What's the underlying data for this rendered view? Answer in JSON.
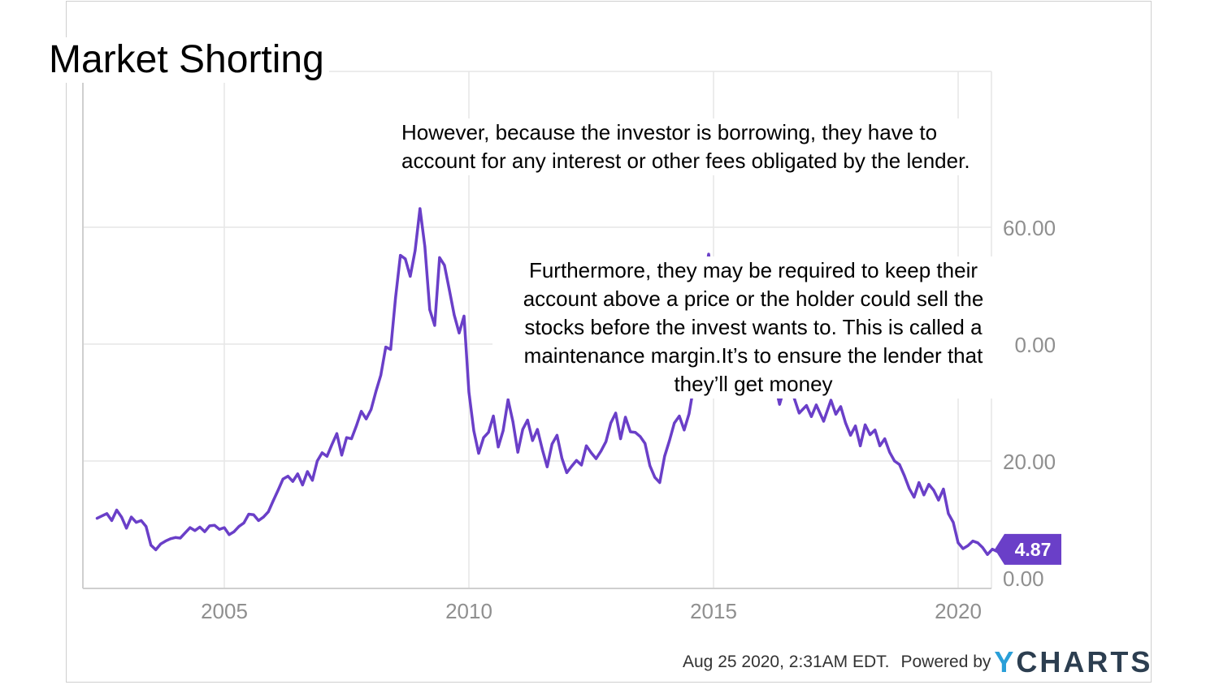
{
  "title": "Market Shorting",
  "callouts": {
    "first": "However, because the investor is borrowing, they have to account for any interest or other fees obligated by the lender.",
    "second_lines": [
      "Furthermore, they may be required to keep their",
      "account above a price or the holder could sell the",
      "stocks before the invest wants to. This is called a",
      "maintenance margin.It’s to ensure the lender that",
      "they’ll get money"
    ]
  },
  "footer": {
    "timestamp": "Aug 25 2020, 2:31AM EDT.",
    "powered_by": "Powered by",
    "brand_y": "Y",
    "brand_rest": "CHARTS"
  },
  "colors": {
    "line": "#6a3fc8",
    "badge": "#6a3fc8",
    "grid": "#e6e6e6",
    "axis": "#cfcfcf",
    "tick_text": "#8f8f8f"
  },
  "chart_data": {
    "type": "line",
    "title": "",
    "xlabel": "",
    "ylabel": "",
    "xlim": [
      2002.4,
      2020.9
    ],
    "ylim": [
      0,
      80
    ],
    "yticks": [
      "0.00",
      "20.00",
      "40.00",
      "60.00"
    ],
    "xticks": [
      "2005",
      "2010",
      "2015",
      "2020"
    ],
    "grid": true,
    "last_value_label": "4.87",
    "series": [
      {
        "name": "",
        "points": [
          [
            2002.4,
            10.2
          ],
          [
            2002.6,
            11.0
          ],
          [
            2002.7,
            9.8
          ],
          [
            2002.8,
            11.6
          ],
          [
            2002.9,
            10.4
          ],
          [
            2003.0,
            8.5
          ],
          [
            2003.1,
            10.4
          ],
          [
            2003.2,
            9.5
          ],
          [
            2003.3,
            9.8
          ],
          [
            2003.4,
            8.8
          ],
          [
            2003.5,
            5.6
          ],
          [
            2003.6,
            4.8
          ],
          [
            2003.7,
            5.8
          ],
          [
            2003.8,
            6.3
          ],
          [
            2003.9,
            6.7
          ],
          [
            2004.0,
            6.9
          ],
          [
            2004.1,
            6.8
          ],
          [
            2004.2,
            7.7
          ],
          [
            2004.3,
            8.6
          ],
          [
            2004.4,
            8.1
          ],
          [
            2004.5,
            8.7
          ],
          [
            2004.6,
            7.9
          ],
          [
            2004.7,
            8.9
          ],
          [
            2004.8,
            9.0
          ],
          [
            2004.9,
            8.3
          ],
          [
            2005.0,
            8.6
          ],
          [
            2005.1,
            7.4
          ],
          [
            2005.2,
            7.9
          ],
          [
            2005.3,
            8.8
          ],
          [
            2005.4,
            9.4
          ],
          [
            2005.5,
            10.9
          ],
          [
            2005.6,
            10.8
          ],
          [
            2005.7,
            9.8
          ],
          [
            2005.8,
            10.4
          ],
          [
            2005.9,
            11.3
          ],
          [
            2006.0,
            13.2
          ],
          [
            2006.1,
            15.0
          ],
          [
            2006.2,
            16.9
          ],
          [
            2006.3,
            17.4
          ],
          [
            2006.4,
            16.5
          ],
          [
            2006.5,
            17.8
          ],
          [
            2006.6,
            15.9
          ],
          [
            2006.7,
            18.2
          ],
          [
            2006.8,
            16.7
          ],
          [
            2006.9,
            20.0
          ],
          [
            2007.0,
            21.4
          ],
          [
            2007.1,
            20.8
          ],
          [
            2007.2,
            22.8
          ],
          [
            2007.3,
            24.7
          ],
          [
            2007.4,
            21.0
          ],
          [
            2007.5,
            24.0
          ],
          [
            2007.6,
            23.8
          ],
          [
            2007.7,
            26.0
          ],
          [
            2007.8,
            28.5
          ],
          [
            2007.9,
            27.2
          ],
          [
            2008.0,
            28.8
          ],
          [
            2008.1,
            31.9
          ],
          [
            2008.2,
            34.7
          ],
          [
            2008.3,
            39.5
          ],
          [
            2008.4,
            39.1
          ],
          [
            2008.5,
            47.9
          ],
          [
            2008.6,
            55.2
          ],
          [
            2008.7,
            54.6
          ],
          [
            2008.8,
            51.6
          ],
          [
            2008.9,
            56.0
          ],
          [
            2009.0,
            63.2
          ],
          [
            2009.1,
            56.7
          ],
          [
            2009.2,
            45.9
          ],
          [
            2009.3,
            43.2
          ],
          [
            2009.4,
            54.8
          ],
          [
            2009.5,
            53.5
          ],
          [
            2009.6,
            49.3
          ],
          [
            2009.7,
            45.0
          ],
          [
            2009.8,
            41.9
          ],
          [
            2009.9,
            44.8
          ],
          [
            2010.0,
            31.8
          ],
          [
            2010.1,
            25.2
          ],
          [
            2010.2,
            21.3
          ],
          [
            2010.3,
            24.0
          ],
          [
            2010.4,
            24.9
          ],
          [
            2010.5,
            27.7
          ],
          [
            2010.6,
            22.4
          ],
          [
            2010.7,
            25.2
          ],
          [
            2010.8,
            30.5
          ],
          [
            2010.9,
            26.7
          ],
          [
            2011.0,
            21.5
          ],
          [
            2011.1,
            25.4
          ],
          [
            2011.2,
            27.0
          ],
          [
            2011.3,
            23.5
          ],
          [
            2011.4,
            25.4
          ],
          [
            2011.5,
            22.0
          ],
          [
            2011.6,
            19.0
          ],
          [
            2011.7,
            22.9
          ],
          [
            2011.8,
            24.4
          ],
          [
            2011.9,
            20.5
          ],
          [
            2012.0,
            18.0
          ],
          [
            2012.1,
            19.1
          ],
          [
            2012.2,
            20.1
          ],
          [
            2012.3,
            19.3
          ],
          [
            2012.4,
            22.6
          ],
          [
            2012.5,
            21.4
          ],
          [
            2012.6,
            20.4
          ],
          [
            2012.7,
            21.7
          ],
          [
            2012.8,
            23.3
          ],
          [
            2012.9,
            26.5
          ],
          [
            2013.0,
            28.2
          ],
          [
            2013.1,
            23.8
          ],
          [
            2013.2,
            27.5
          ],
          [
            2013.3,
            25.0
          ],
          [
            2013.4,
            24.9
          ],
          [
            2013.5,
            24.2
          ],
          [
            2013.6,
            23.0
          ],
          [
            2013.7,
            19.2
          ],
          [
            2013.8,
            17.2
          ],
          [
            2013.9,
            16.3
          ],
          [
            2014.0,
            20.8
          ],
          [
            2014.1,
            23.5
          ],
          [
            2014.2,
            26.5
          ],
          [
            2014.3,
            27.7
          ],
          [
            2014.4,
            25.3
          ],
          [
            2014.5,
            28.1
          ],
          [
            2014.6,
            33.0
          ],
          [
            2014.7,
            44.4
          ],
          [
            2014.8,
            50.2
          ],
          [
            2014.9,
            55.4
          ],
          [
            2015.0,
            48.5
          ],
          [
            2015.1,
            45.0
          ],
          [
            2015.2,
            43.8
          ],
          [
            2015.4,
            41.0
          ],
          [
            2015.6,
            39.5
          ],
          [
            2015.8,
            38.0
          ],
          [
            2016.0,
            36.5
          ],
          [
            2016.2,
            35.4
          ],
          [
            2016.35,
            29.7
          ],
          [
            2016.5,
            34.1
          ],
          [
            2016.6,
            32.0
          ],
          [
            2016.75,
            28.2
          ],
          [
            2016.9,
            29.5
          ],
          [
            2017.0,
            27.6
          ],
          [
            2017.1,
            29.6
          ],
          [
            2017.25,
            26.8
          ],
          [
            2017.4,
            30.4
          ],
          [
            2017.5,
            28.0
          ],
          [
            2017.6,
            29.3
          ],
          [
            2017.7,
            26.5
          ],
          [
            2017.8,
            24.4
          ],
          [
            2017.9,
            26.0
          ],
          [
            2018.0,
            22.6
          ],
          [
            2018.1,
            26.2
          ],
          [
            2018.2,
            24.5
          ],
          [
            2018.3,
            25.3
          ],
          [
            2018.4,
            22.6
          ],
          [
            2018.5,
            23.8
          ],
          [
            2018.6,
            21.5
          ],
          [
            2018.7,
            20.0
          ],
          [
            2018.8,
            19.4
          ],
          [
            2018.9,
            17.5
          ],
          [
            2019.0,
            15.3
          ],
          [
            2019.1,
            13.8
          ],
          [
            2019.2,
            16.3
          ],
          [
            2019.3,
            14.2
          ],
          [
            2019.4,
            16.0
          ],
          [
            2019.5,
            15.0
          ],
          [
            2019.6,
            13.3
          ],
          [
            2019.7,
            15.2
          ],
          [
            2019.8,
            11.0
          ],
          [
            2019.9,
            9.5
          ],
          [
            2020.0,
            6.0
          ],
          [
            2020.1,
            5.0
          ],
          [
            2020.2,
            5.5
          ],
          [
            2020.3,
            6.3
          ],
          [
            2020.4,
            6.0
          ],
          [
            2020.5,
            5.2
          ],
          [
            2020.6,
            4.0
          ],
          [
            2020.7,
            4.9
          ],
          [
            2020.8,
            4.5
          ],
          [
            2020.9,
            4.87
          ]
        ]
      }
    ]
  }
}
